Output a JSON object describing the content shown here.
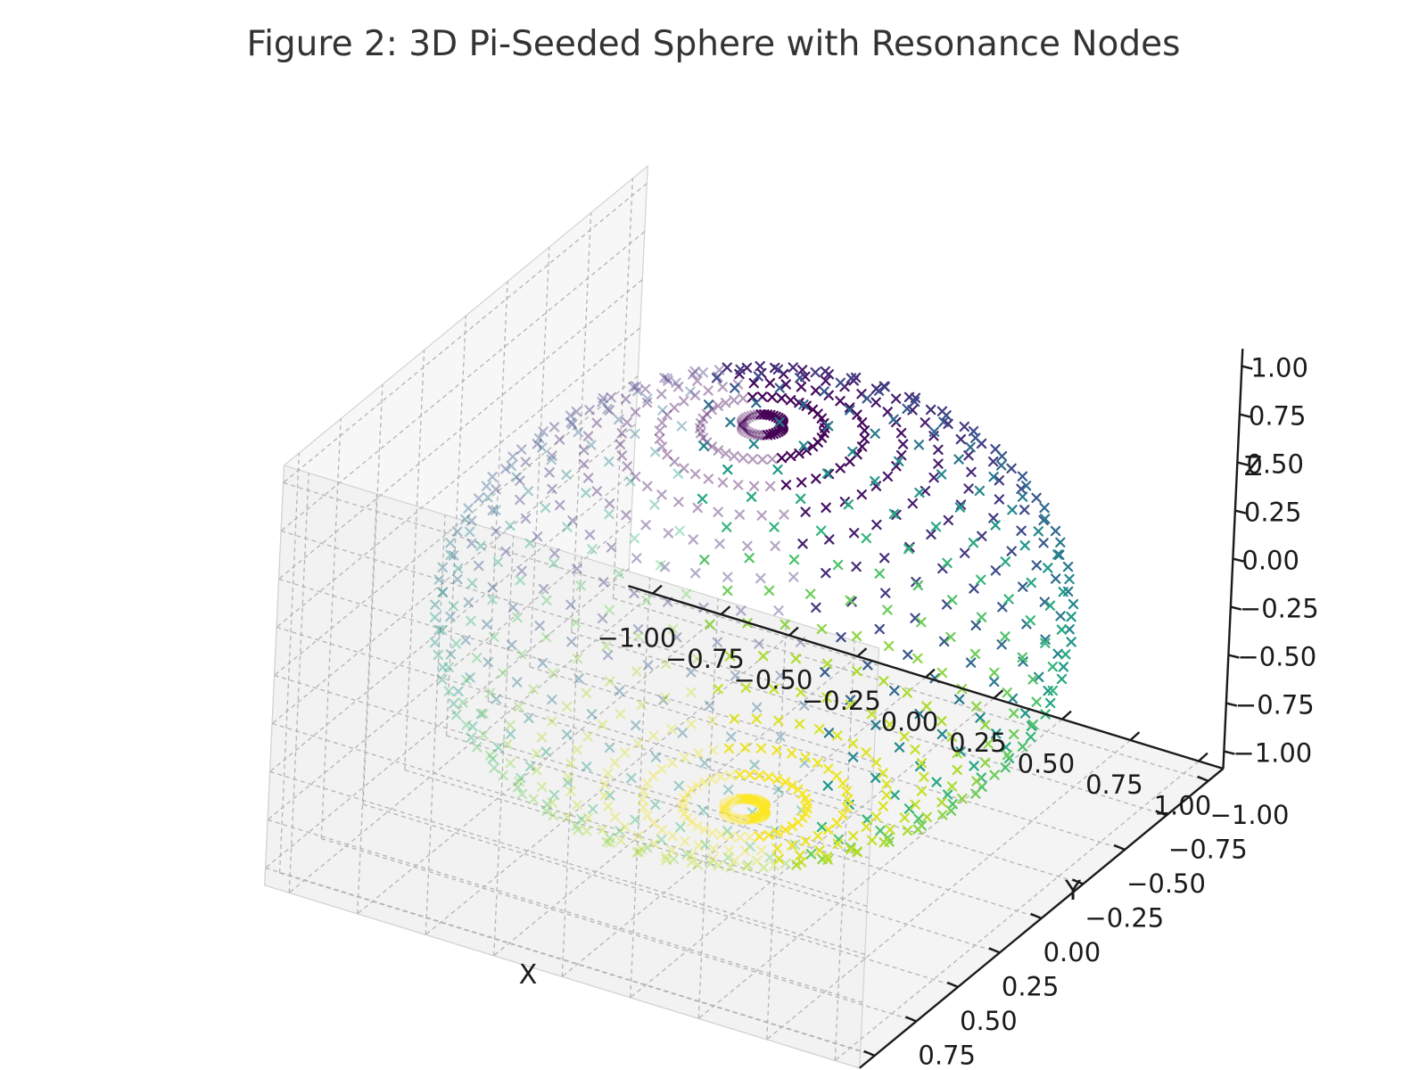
{
  "chart_data": {
    "type": "scatter",
    "title": "Figure 2: 3D Pi-Seeded Sphere with Resonance Nodes",
    "xlabel": "X",
    "ylabel": "Y",
    "zlabel": "Z",
    "xlim": [
      -1.0,
      1.0
    ],
    "ylim": [
      -1.0,
      1.0
    ],
    "zlim": [
      -1.0,
      1.0
    ],
    "x_ticks": [
      "−1.00",
      "−0.75",
      "−0.50",
      "−0.25",
      "0.00",
      "0.25",
      "0.50",
      "0.75",
      "1.00"
    ],
    "y_ticks": [
      "−1.00",
      "−0.75",
      "−0.50",
      "−0.25",
      "0.00",
      "0.25",
      "0.50",
      "0.75",
      "1.00"
    ],
    "z_ticks": [
      "−1.00",
      "−0.75",
      "−0.50",
      "−0.25",
      "0.00",
      "0.25",
      "0.50",
      "0.75",
      "1.00"
    ],
    "grid": true,
    "marker": "X",
    "colormap": "viridis",
    "color_by": "z (top purple to bottom yellow)",
    "series": [
      {
        "shape": "sphere",
        "center": [
          0,
          0,
          0
        ],
        "radius": 1.0,
        "latitude_rings": 24,
        "points_per_ring": 40
      }
    ]
  }
}
